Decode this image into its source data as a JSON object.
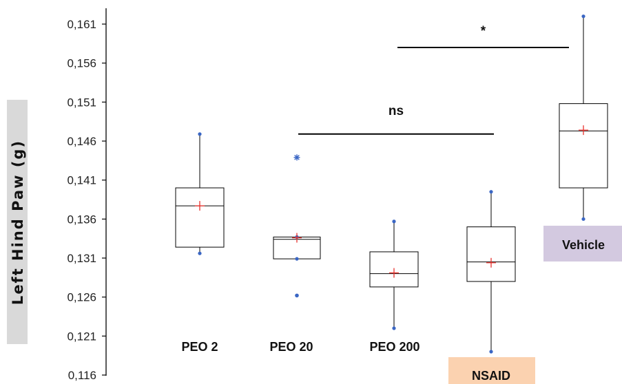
{
  "chart_data": {
    "type": "box",
    "ylabel": "Left Hind Paw (g)",
    "ylim": [
      0.116,
      0.163
    ],
    "yticks": [
      "0,116",
      "0,121",
      "0,126",
      "0,131",
      "0,136",
      "0,141",
      "0,146",
      "0,151",
      "0,156",
      "0,161"
    ],
    "categories": [
      "PEO 2",
      "PEO 20",
      "PEO 200",
      "NSAID",
      "Vehicle"
    ],
    "label_highlight": {
      "NSAID": "#fbd2b0",
      "Vehicle": "#d3c9e0"
    },
    "colors": {
      "mean_marker": "#e8312c",
      "whisker_end": "#3a66c4",
      "outlier": "#3a66c4",
      "box": "#000000"
    },
    "boxes": [
      {
        "category": "PEO 2",
        "min": 0.1316,
        "q1": 0.1324,
        "median": 0.1377,
        "q3": 0.14,
        "max": 0.1469,
        "mean": 0.1377,
        "outliers": []
      },
      {
        "category": "PEO 20",
        "min": 0.1309,
        "q1": 0.1309,
        "median": 0.1334,
        "q3": 0.1337,
        "max": 0.1337,
        "mean": 0.1336,
        "outliers": [
          {
            "value": 0.1439,
            "marker": "asterisk"
          },
          {
            "value": 0.1262,
            "marker": "dot"
          }
        ]
      },
      {
        "category": "PEO 200",
        "min": 0.122,
        "q1": 0.1273,
        "median": 0.129,
        "q3": 0.1318,
        "max": 0.1357,
        "mean": 0.1291,
        "outliers": []
      },
      {
        "category": "NSAID",
        "min": 0.119,
        "q1": 0.128,
        "median": 0.1305,
        "q3": 0.135,
        "max": 0.1395,
        "mean": 0.1304,
        "outliers": []
      },
      {
        "category": "Vehicle",
        "min": 0.136,
        "q1": 0.14,
        "median": 0.1473,
        "q3": 0.1508,
        "max": 0.162,
        "mean": 0.1474,
        "outliers": []
      }
    ],
    "annotations": [
      {
        "label": "ns",
        "from": "PEO 20",
        "to": "NSAID",
        "y": 0.1469
      },
      {
        "label": "*",
        "from": "PEO 200",
        "to": "Vehicle",
        "y": 0.158
      }
    ]
  }
}
